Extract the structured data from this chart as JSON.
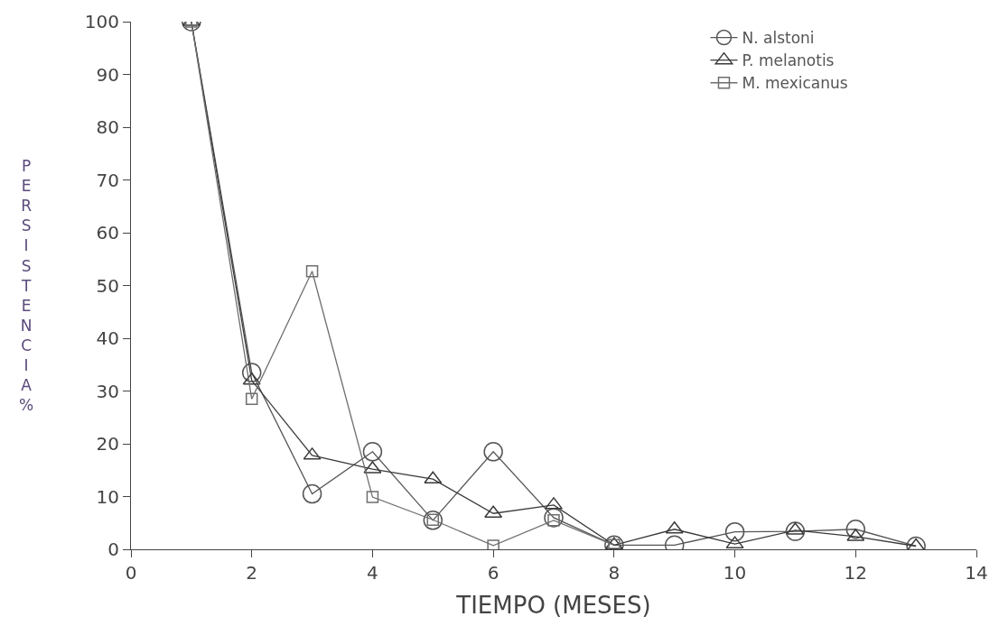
{
  "chart_data": {
    "type": "line",
    "xlabel": "TIEMPO (MESES)",
    "ylabel": "PERSISTENCIA %",
    "x": [
      1,
      2,
      3,
      4,
      5,
      6,
      7,
      8,
      9,
      10,
      11,
      12,
      13
    ],
    "series": [
      {
        "name": "N. alstoni",
        "color": "#555555",
        "marker": "circle",
        "values": [
          100,
          33.5,
          10.5,
          18.5,
          5.5,
          18.5,
          6,
          0.8,
          0.8,
          3.3,
          3.4,
          3.8,
          0.6
        ]
      },
      {
        "name": "P. melanotis",
        "color": "#3a3a3a",
        "marker": "triangle",
        "values": [
          100,
          32,
          17.8,
          15.2,
          13.3,
          6.8,
          8.4,
          0.8,
          3.8,
          1,
          3.6,
          2.4,
          0.6
        ]
      },
      {
        "name": "M. mexicanus",
        "color": "#6e6e6e",
        "marker": "square",
        "values": [
          100,
          28.5,
          52.7,
          9.9,
          5.6,
          0.7,
          5.5,
          0.8,
          null,
          null,
          null,
          null,
          null
        ]
      }
    ],
    "xlim": [
      0,
      14
    ],
    "xticks": [
      0,
      2,
      4,
      6,
      8,
      10,
      12,
      14
    ],
    "ylim": [
      0,
      100
    ],
    "yticks": [
      0,
      10,
      20,
      30,
      40,
      50,
      60,
      70,
      80,
      90,
      100
    ],
    "legend": "top right",
    "line_style": "solid"
  }
}
